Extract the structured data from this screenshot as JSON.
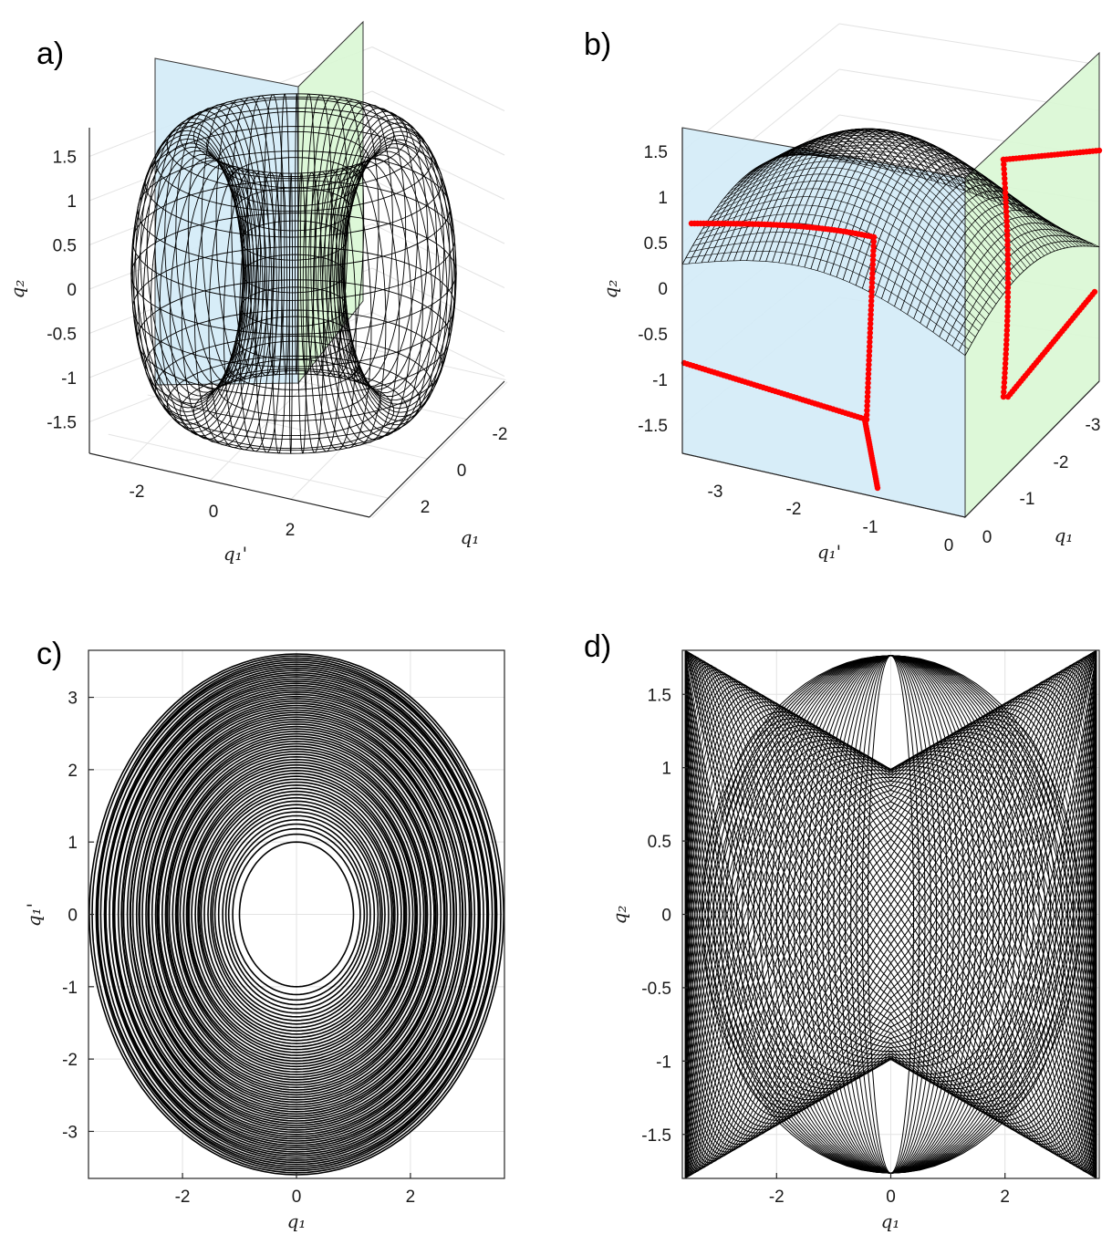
{
  "chart_data": [
    {
      "panel": "a)",
      "type": "line",
      "view": "3d",
      "xlabel": "q₁",
      "ylabel": "q₁'",
      "zlabel": "q₂",
      "xticks": [
        "-2",
        "0",
        "2"
      ],
      "yticks": [
        "-2",
        "0",
        "2"
      ],
      "zticks": [
        "-1.5",
        "-1",
        "-0.5",
        "0",
        "0.5",
        "1",
        "1.5"
      ],
      "xlim": [
        -3.6,
        3.6
      ],
      "ylim": [
        -3.6,
        3.6
      ],
      "zlim": [
        -1.8,
        1.8
      ],
      "planes": [
        {
          "normal": "q1'",
          "at": 0,
          "color": "#d3ebf7"
        },
        {
          "normal": "q1",
          "at": 0,
          "color": "#d9f7d4"
        }
      ],
      "grid": true
    },
    {
      "panel": "b)",
      "type": "line",
      "view": "3d",
      "xlabel": "q₁",
      "ylabel": "q₁'",
      "zlabel": "q₂",
      "xticks": [
        "-3",
        "-2",
        "-1",
        "0"
      ],
      "yticks": [
        "-3",
        "-2",
        "-1",
        "0"
      ],
      "zticks": [
        "-1.5",
        "-1",
        "-0.5",
        "0",
        "0.5",
        "1",
        "1.5"
      ],
      "xlim": [
        -3.6,
        0
      ],
      "ylim": [
        -3.6,
        0
      ],
      "zlim": [
        -1.8,
        1.8
      ],
      "planes": [
        {
          "normal": "q1'",
          "at": 0,
          "color": "#d3ebf7"
        },
        {
          "normal": "q1",
          "at": 0,
          "color": "#d9f7d4"
        }
      ],
      "section_points_color": "#ff0000",
      "grid": true
    },
    {
      "panel": "c)",
      "type": "line",
      "xlabel": "q₁",
      "ylabel": "q₁'",
      "xlim": [
        -3.65,
        3.65
      ],
      "ylim": [
        -3.65,
        3.65
      ],
      "xticks": [
        "-2",
        "0",
        "2"
      ],
      "yticks": [
        "-3",
        "-2",
        "-1",
        "0",
        "1",
        "2",
        "3"
      ],
      "inner_radius": 1.0,
      "outer_radius": 3.6,
      "grid": true
    },
    {
      "panel": "d)",
      "type": "line",
      "xlabel": "q₁",
      "ylabel": "q₂",
      "xlim": [
        -3.65,
        3.65
      ],
      "ylim": [
        -1.8,
        1.8
      ],
      "xticks": [
        "-2",
        "0",
        "2"
      ],
      "yticks": [
        "-1.5",
        "-1",
        "-0.5",
        "0",
        "0.5",
        "1",
        "1.5"
      ],
      "amplitude_q1": 3.6,
      "amplitude_q2": 1.8,
      "grid": true
    }
  ]
}
